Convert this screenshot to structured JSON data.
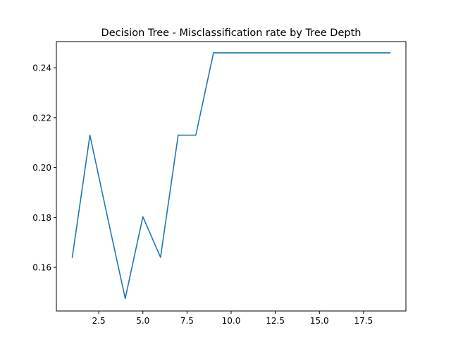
{
  "chart_data": {
    "type": "line",
    "title": "Decision Tree - Misclassification rate by Tree Depth",
    "xlabel": "",
    "ylabel": "",
    "xlim": [
      0.1,
      19.9
    ],
    "ylim": [
      0.1425,
      0.2505
    ],
    "x_ticks": [
      2.5,
      5.0,
      7.5,
      10.0,
      12.5,
      15.0,
      17.5
    ],
    "x_tick_labels": [
      "2.5",
      "5.0",
      "7.5",
      "10.0",
      "12.5",
      "15.0",
      "17.5"
    ],
    "y_ticks": [
      0.16,
      0.18,
      0.2,
      0.22,
      0.24
    ],
    "y_tick_labels": [
      "0.16",
      "0.18",
      "0.20",
      "0.22",
      "0.24"
    ],
    "grid": false,
    "series": [
      {
        "color": "#1f77b4",
        "x": [
          1,
          2,
          3,
          4,
          5,
          6,
          7,
          8,
          9,
          10,
          11,
          12,
          13,
          14,
          15,
          16,
          17,
          18,
          19
        ],
        "y": [
          0.164,
          0.213,
          0.18,
          0.1475,
          0.1803,
          0.164,
          0.213,
          0.213,
          0.246,
          0.246,
          0.246,
          0.246,
          0.246,
          0.246,
          0.246,
          0.246,
          0.246,
          0.246,
          0.246
        ]
      }
    ]
  }
}
